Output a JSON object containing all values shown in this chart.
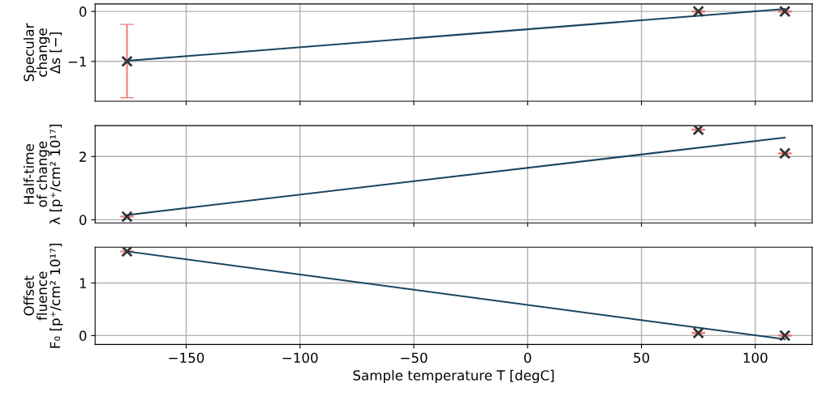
{
  "chart_data": [
    {
      "type": "scatter",
      "ylabel": "Specular\nchange\nΔs [−]",
      "xlim": [
        -190,
        125
      ],
      "xticks": [
        -150,
        -100,
        -50,
        0,
        50,
        100
      ],
      "ylim": [
        -1.8,
        0.15
      ],
      "yticks": [
        0,
        -1
      ],
      "grid": true,
      "tick_labels": "y",
      "series": [
        {
          "x": [
            -176,
            75,
            113
          ],
          "values": [
            -1,
            0,
            0
          ],
          "color": "#333333",
          "marker": "cross",
          "errors": [
            [
              -1.73,
              -0.26
            ],
            0.01,
            0.01
          ]
        },
        {
          "type": "line",
          "x": [
            -176,
            113
          ],
          "values": [
            -0.99,
            0.05
          ],
          "color": "#1b4560"
        }
      ]
    },
    {
      "type": "scatter",
      "ylabel": "Half-time\nof change\nλ [p⁺/cm² 10¹⁷]",
      "xlim": [
        -190,
        125
      ],
      "xticks": [
        -150,
        -100,
        -50,
        0,
        50,
        100
      ],
      "ylim": [
        -0.1,
        2.98
      ],
      "yticks": [
        0,
        2
      ],
      "grid": true,
      "tick_labels": "y",
      "series": [
        {
          "x": [
            -176,
            75,
            113
          ],
          "values": [
            0.1,
            2.85,
            2.1
          ],
          "color": "#333333",
          "marker": "cross",
          "errors": [
            0.01,
            0.01,
            0.01
          ]
        },
        {
          "type": "line",
          "x": [
            -176,
            113
          ],
          "values": [
            0.15,
            2.6
          ],
          "color": "#1b4560"
        }
      ]
    },
    {
      "type": "scatter",
      "xlabel": "Sample temperature T [degC]",
      "ylabel": "Offset\nfluence\nF₀ [p⁺/cm² 10¹⁷]",
      "xlim": [
        -190,
        125
      ],
      "xticks": [
        -150,
        -100,
        -50,
        0,
        50,
        100
      ],
      "ylim": [
        -0.17,
        1.68
      ],
      "yticks": [
        0,
        1
      ],
      "grid": true,
      "series": [
        {
          "x": [
            -176,
            75,
            113
          ],
          "values": [
            1.6,
            0.05,
            0.0
          ],
          "color": "#333333",
          "marker": "cross",
          "errors": [
            0.01,
            0.01,
            0.01
          ]
        },
        {
          "type": "line",
          "x": [
            -176,
            113
          ],
          "values": [
            1.6,
            -0.07
          ],
          "color": "#1b4560"
        }
      ]
    }
  ]
}
